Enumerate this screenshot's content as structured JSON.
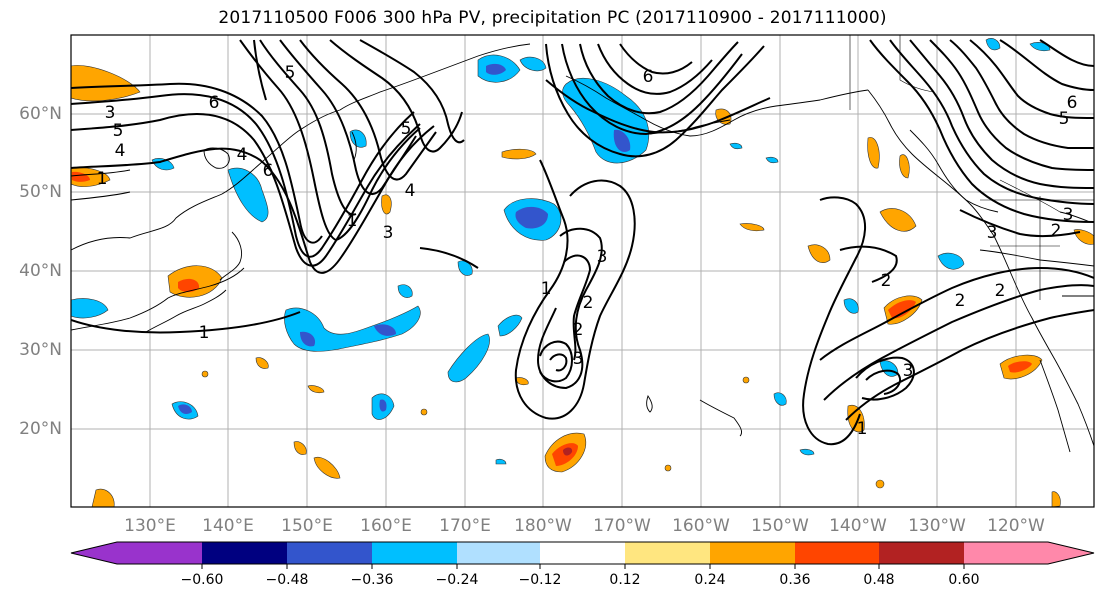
{
  "title": "2017110500 F006 300 hPa PV, precipitation PC (2017110900 - 2017111000)",
  "lat_labels": [
    "60°N",
    "50°N",
    "40°N",
    "30°N",
    "20°N"
  ],
  "lon_labels": [
    "130°E",
    "140°E",
    "150°E",
    "160°E",
    "170°E",
    "180°W",
    "170°W",
    "160°W",
    "150°W",
    "140°W",
    "130°W",
    "120°W"
  ],
  "colorbar": {
    "colors": [
      "#9933cc",
      "#000080",
      "#3355cc",
      "#00bfff",
      "#b0e0ff",
      "#ffffff",
      "#ffe680",
      "#ffa500",
      "#ff4500",
      "#b22222",
      "#ff88aa"
    ],
    "tick_labels": [
      "−0.60",
      "−0.48",
      "−0.36",
      "−0.24",
      "−0.12",
      "0.12",
      "0.24",
      "0.36",
      "0.48",
      "0.60"
    ]
  },
  "pv_contour_labels": [
    "3",
    "5",
    "4",
    "1",
    "6",
    "6",
    "5",
    "4",
    "3",
    "1",
    "4",
    "5",
    "6",
    "3",
    "2",
    "3",
    "2",
    "1",
    "2",
    "3",
    "2",
    "2",
    "3",
    "1",
    "5",
    "6",
    "3",
    "2",
    "1"
  ]
}
